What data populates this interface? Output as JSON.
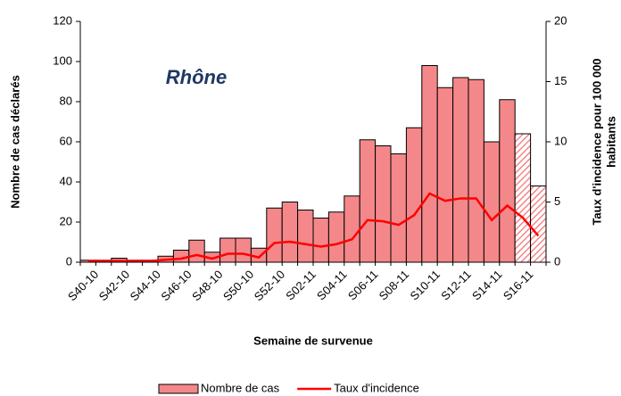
{
  "chart_data": {
    "type": "bar-line",
    "annotation": "Rhône",
    "xlabel": "Semaine de survenue",
    "ylabel": "Nombre de cas déclarés",
    "y2label": [
      "Taux d'incidence pour 100 000",
      "habitants"
    ],
    "categories": [
      "S40-10",
      null,
      "S42-10",
      null,
      "S44-10",
      null,
      "S46-10",
      null,
      "S48-10",
      null,
      "S50-10",
      null,
      "S52-10",
      null,
      "S02-11",
      null,
      "S04-11",
      null,
      "S06-11",
      null,
      "S08-11",
      null,
      "S10-11",
      null,
      "S12-11",
      null,
      "S14-11",
      null,
      "S16-11",
      null
    ],
    "series": [
      {
        "name": "Nombre de cas",
        "type": "bar",
        "color": "#f4878a",
        "values": [
          1,
          1,
          2,
          1,
          1,
          3,
          6,
          11,
          5,
          12,
          12,
          7,
          27,
          30,
          26,
          22,
          25,
          33,
          61,
          58,
          54,
          67,
          98,
          87,
          92,
          91,
          60,
          81,
          64,
          38
        ],
        "hatched": [
          false,
          false,
          false,
          false,
          false,
          false,
          false,
          false,
          false,
          false,
          false,
          false,
          false,
          false,
          false,
          false,
          false,
          false,
          false,
          false,
          false,
          false,
          false,
          false,
          false,
          false,
          false,
          false,
          true,
          true
        ]
      },
      {
        "name": "Taux d'incidence",
        "type": "line",
        "axis": "y2",
        "color": "#ff0000",
        "values": [
          0.1,
          0.1,
          0.1,
          0.1,
          0.1,
          0.2,
          0.3,
          0.6,
          0.3,
          0.7,
          0.7,
          0.4,
          1.6,
          1.7,
          1.5,
          1.3,
          1.5,
          1.9,
          3.5,
          3.4,
          3.1,
          3.9,
          5.7,
          5.1,
          5.3,
          5.3,
          3.5,
          4.7,
          3.7,
          2.2
        ]
      }
    ],
    "ylim": [
      0,
      120
    ],
    "yticks": [
      0,
      20,
      40,
      60,
      80,
      100,
      120
    ],
    "y2lim": [
      0,
      20
    ],
    "y2ticks": [
      0,
      5,
      10,
      15,
      20
    ],
    "legend": "bottom"
  }
}
